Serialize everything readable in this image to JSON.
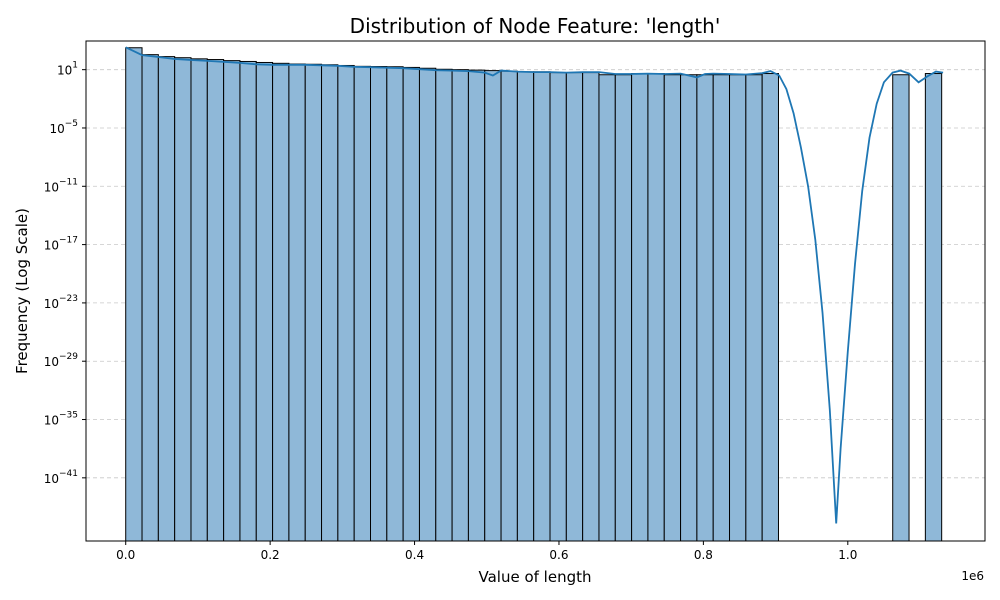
{
  "chart_data": {
    "type": "bar",
    "title": "Distribution of Node Feature: 'length'",
    "xlabel": "Value of length",
    "ylabel": "Frequency (Log Scale)",
    "x_offset_label": "1e6",
    "x_multiplier": 1000000,
    "yscale": "log",
    "grid": "y-dashed",
    "xlim": [
      -55000,
      1190000
    ],
    "ylim_log10": [
      -47.5,
      3.95
    ],
    "x_ticks": [
      0,
      200000,
      400000,
      600000,
      800000,
      1000000
    ],
    "x_tick_labels": [
      "0.0",
      "0.2",
      "0.4",
      "0.6",
      "0.8",
      "1.0"
    ],
    "y_ticks_log10": [
      1,
      -5,
      -11,
      -17,
      -23,
      -29,
      -35,
      -41
    ],
    "y_tick_bases": [
      "10",
      "10",
      "10",
      "10",
      "10",
      "10",
      "10",
      "10"
    ],
    "y_tick_exponents": [
      "1",
      "−5",
      "−11",
      "−17",
      "−23",
      "−29",
      "−35",
      "−41"
    ],
    "bin_width": 22600,
    "bin_starts": [
      0,
      22600,
      45200,
      67800,
      90400,
      113000,
      135600,
      158200,
      180800,
      203400,
      226000,
      248600,
      271200,
      293800,
      316400,
      339000,
      361600,
      384200,
      406800,
      429400,
      452000,
      474600,
      497200,
      519800,
      542400,
      565000,
      587600,
      610200,
      632800,
      655400,
      678000,
      700600,
      723200,
      745800,
      768400,
      791000,
      813600,
      836200,
      858800,
      881400,
      1062200,
      1107400
    ],
    "bin_counts": [
      1800,
      350,
      220,
      170,
      130,
      110,
      85,
      70,
      55,
      45,
      38,
      36,
      32,
      27,
      22,
      21,
      20,
      17,
      14,
      11,
      10,
      9,
      8,
      7,
      6,
      6,
      5,
      5,
      5,
      3,
      3,
      4,
      4,
      3,
      3,
      3,
      3,
      3,
      3,
      4,
      3,
      4
    ],
    "kde_log10": [
      [
        0,
        3.3
      ],
      [
        22600,
        2.5
      ],
      [
        45200,
        2.3
      ],
      [
        67800,
        2.1
      ],
      [
        90400,
        2.0
      ],
      [
        113000,
        1.9
      ],
      [
        135600,
        1.8
      ],
      [
        158200,
        1.7
      ],
      [
        180800,
        1.55
      ],
      [
        203400,
        1.5
      ],
      [
        226000,
        1.5
      ],
      [
        248600,
        1.5
      ],
      [
        271200,
        1.45
      ],
      [
        293800,
        1.4
      ],
      [
        316400,
        1.3
      ],
      [
        339000,
        1.25
      ],
      [
        361600,
        1.2
      ],
      [
        384200,
        1.15
      ],
      [
        406800,
        1.05
      ],
      [
        429400,
        0.95
      ],
      [
        452000,
        0.9
      ],
      [
        474600,
        0.85
      ],
      [
        497200,
        0.7
      ],
      [
        508500,
        0.4
      ],
      [
        519800,
        0.9
      ],
      [
        542400,
        0.8
      ],
      [
        565000,
        0.75
      ],
      [
        587600,
        0.75
      ],
      [
        610200,
        0.7
      ],
      [
        632800,
        0.75
      ],
      [
        655400,
        0.75
      ],
      [
        678000,
        0.55
      ],
      [
        700600,
        0.55
      ],
      [
        723200,
        0.6
      ],
      [
        745800,
        0.55
      ],
      [
        768400,
        0.6
      ],
      [
        779700,
        0.4
      ],
      [
        791000,
        0.2
      ],
      [
        802300,
        0.55
      ],
      [
        813600,
        0.6
      ],
      [
        836200,
        0.55
      ],
      [
        858800,
        0.5
      ],
      [
        881400,
        0.65
      ],
      [
        893000,
        0.85
      ],
      [
        905000,
        0.4
      ],
      [
        915000,
        -1.0
      ],
      [
        925000,
        -3.5
      ],
      [
        935000,
        -7.0
      ],
      [
        945000,
        -11.0
      ],
      [
        955000,
        -16.5
      ],
      [
        965000,
        -24.0
      ],
      [
        975000,
        -34.0
      ],
      [
        984000,
        -45.7
      ],
      [
        990000,
        -38.0
      ],
      [
        1000000,
        -28.0
      ],
      [
        1010000,
        -19.0
      ],
      [
        1020000,
        -11.5
      ],
      [
        1030000,
        -6.0
      ],
      [
        1040000,
        -2.5
      ],
      [
        1050000,
        -0.3
      ],
      [
        1062000,
        0.7
      ],
      [
        1073000,
        0.9
      ],
      [
        1085000,
        0.6
      ],
      [
        1098000,
        -0.3
      ],
      [
        1110000,
        0.3
      ],
      [
        1122000,
        0.8
      ],
      [
        1132000,
        0.7
      ]
    ],
    "colors": {
      "bar_fill": "#8fb8d8",
      "bar_edge": "#000000",
      "kde_line": "#1f77b4",
      "grid": "#c8c8c8"
    }
  }
}
